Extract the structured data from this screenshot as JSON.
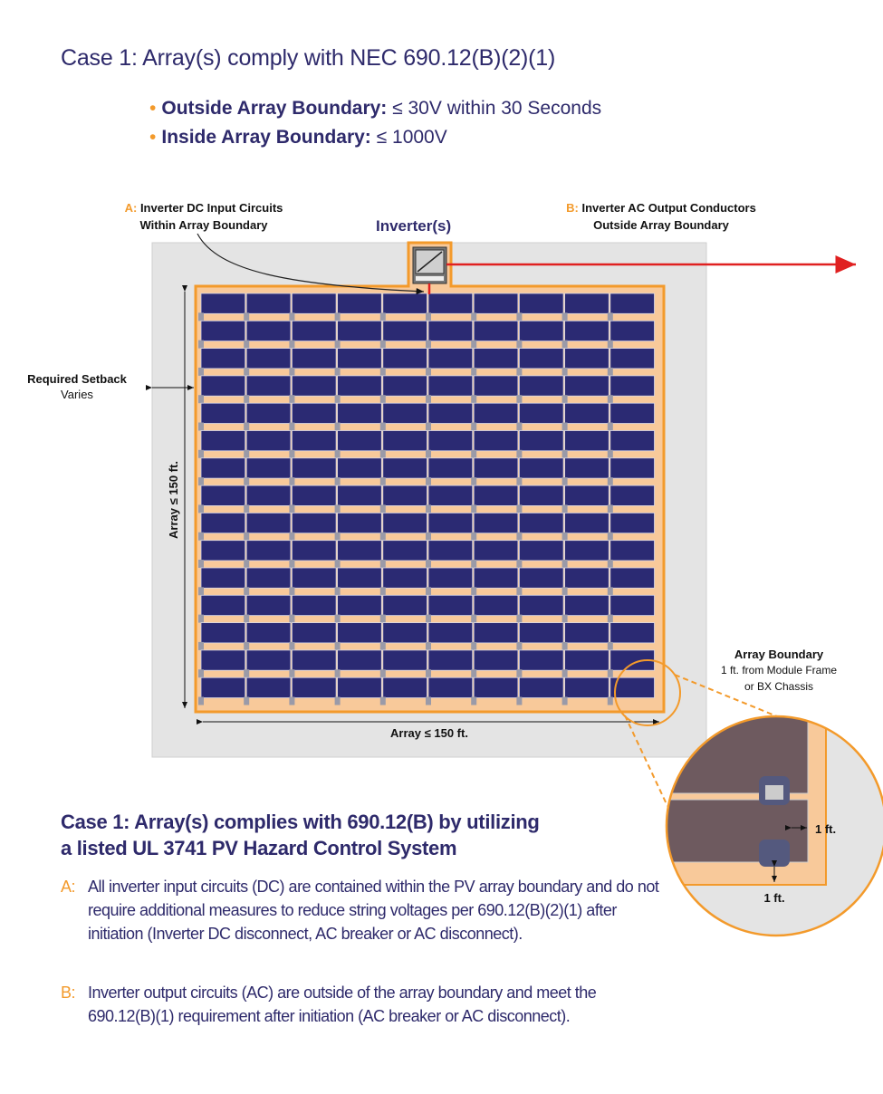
{
  "title": "Case 1: Array(s) comply with NEC 690.12(B)(2)(1)",
  "bullets": [
    {
      "label": "Outside Array Boundary:",
      "text": "≤ 30V within 30 Seconds"
    },
    {
      "label": "Inside Array Boundary:",
      "text": "≤ 1000V"
    }
  ],
  "diagram": {
    "label_a": {
      "letter": "A:",
      "line1": "Inverter DC Input Circuits",
      "line2": "Within Array Boundary"
    },
    "label_b": {
      "letter": "B:",
      "line1": "Inverter AC Output Conductors",
      "line2": "Outside Array Boundary"
    },
    "inverter_label": "Inverter(s)",
    "setback": {
      "title": "Required Setback",
      "sub": "Varies"
    },
    "array_height": "Array ≤ 150 ft.",
    "array_width": "Array ≤ 150 ft.",
    "boundary": {
      "title": "Array Boundary",
      "line1": "1 ft. from Module Frame",
      "line2": "or BX Chassis"
    },
    "detail_side": "1 ft.",
    "detail_bottom": "1 ft.",
    "panel_rows": 15,
    "panel_cols": 10,
    "colors": {
      "navy": "#2e2a6b",
      "orange": "#f39a2b",
      "panel": "#2b2a73",
      "boundary_fill": "#f8c99a",
      "ground": "#e4e4e4",
      "ac_line": "#e02020"
    },
    "icons": [
      "inverter-icon",
      "arrow-right-icon",
      "magnifier-circle"
    ]
  },
  "case2": {
    "heading_line1": "Case 1: Array(s) complies with 690.12(B) by utilizing",
    "heading_line2": "a listed UL 3741 PV Hazard Control System",
    "items": [
      {
        "key": "A:",
        "text": "All inverter input circuits (DC) are contained within the PV array boundary and do not require additional measures to reduce string voltages per 690.12(B)(2)(1) after initiation (Inverter DC disconnect, AC breaker or AC disconnect)."
      },
      {
        "key": "B:",
        "text": "Inverter output circuits (AC) are outside of the array boundary and meet the 690.12(B)(1) requirement after initiation (AC breaker or AC disconnect)."
      }
    ]
  }
}
